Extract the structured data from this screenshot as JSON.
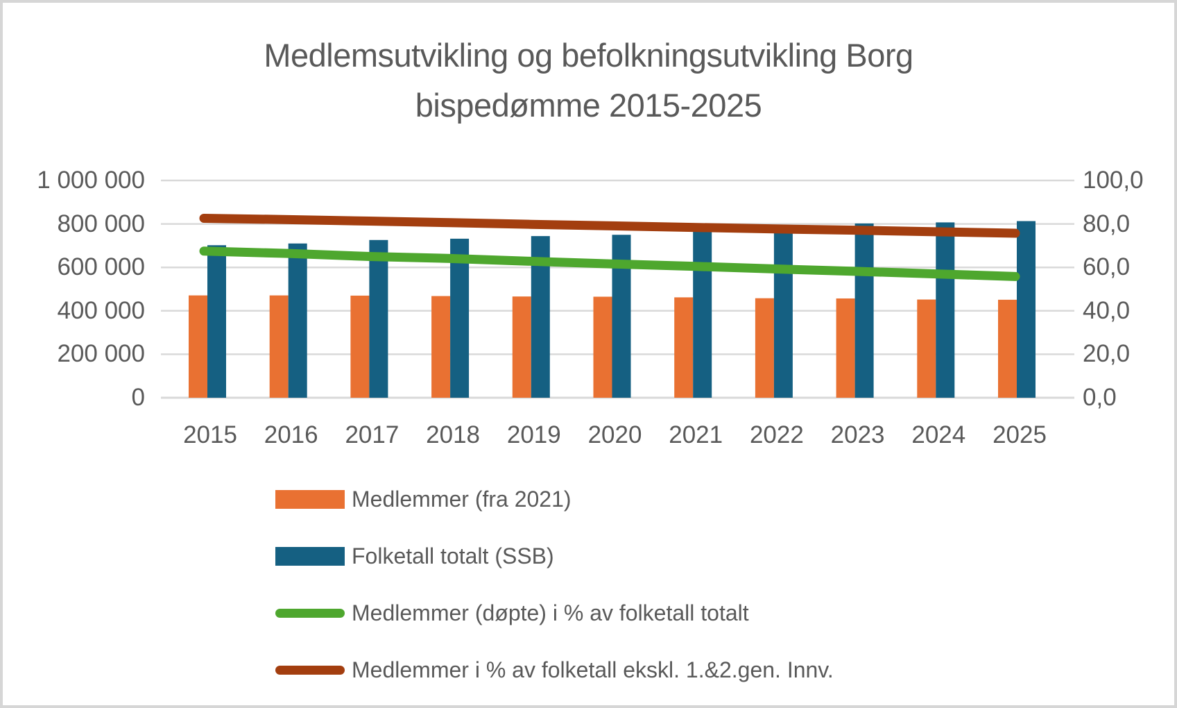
{
  "frame": {
    "border_color": "#d6d6d6",
    "background": "#ffffff"
  },
  "title": {
    "line1": "Medlemsutvikling og befolkningsutvikling Borg",
    "line2": "bispedømme 2015-2025"
  },
  "colors": {
    "axis_text": "#595959",
    "title_text": "#595959",
    "gridline": "#d9d9d9"
  },
  "chart_data": {
    "type": "bar",
    "subtype": "combo-bar-line-dual-axis",
    "title": "Medlemsutvikling og befolkningsutvikling Borg bispedømme 2015-2025",
    "categories": [
      "2015",
      "2016",
      "2017",
      "2018",
      "2019",
      "2020",
      "2021",
      "2022",
      "2023",
      "2024",
      "2025"
    ],
    "series": [
      {
        "name": "Medlemmer (fra 2021)",
        "type": "bar",
        "axis": "left",
        "color": "#E97132",
        "values": [
          471000,
          471000,
          470000,
          468000,
          466000,
          465000,
          462000,
          458000,
          457000,
          452000,
          451000
        ]
      },
      {
        "name": "Folketall totalt (SSB)",
        "type": "bar",
        "axis": "left",
        "color": "#156082",
        "values": [
          702000,
          710000,
          726000,
          732000,
          744000,
          750000,
          766000,
          773000,
          802000,
          807000,
          813000
        ]
      },
      {
        "name": "Medlemmer (døpte) i % av folketall totalt",
        "type": "line",
        "axis": "right",
        "color": "#4EA72E",
        "values": [
          67.5,
          66.4,
          65.0,
          64.1,
          62.8,
          61.6,
          60.5,
          59.3,
          58.2,
          57.0,
          55.8
        ]
      },
      {
        "name": "Medlemmer i % av folketall ekskl. 1.&2.gen. Innv.",
        "type": "line",
        "axis": "right",
        "color": "#A33E0F",
        "values": [
          82.6,
          82.0,
          81.3,
          80.6,
          79.8,
          79.1,
          78.4,
          77.7,
          77.1,
          76.4,
          75.7
        ]
      }
    ],
    "left_axis": {
      "min": 0,
      "max": 1000000,
      "tick_labels_top_to_bottom": [
        "1 000 000",
        "800 000",
        "600 000",
        "400 000",
        "200 000",
        "0"
      ]
    },
    "right_axis": {
      "min": 0,
      "max": 100,
      "tick_labels_top_to_bottom": [
        "100,0",
        "80,0",
        "60,0",
        "40,0",
        "20,0",
        "0,0"
      ]
    },
    "grid": true,
    "legend_position": "bottom-left"
  }
}
